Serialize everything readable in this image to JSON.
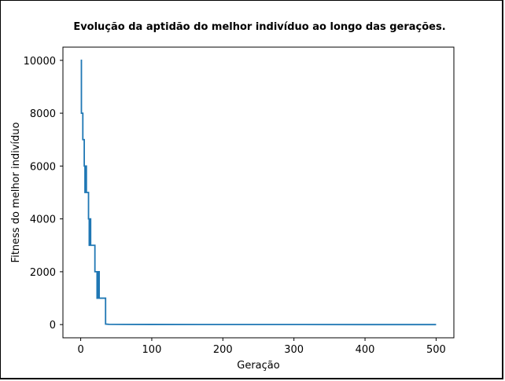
{
  "chart_data": {
    "type": "line",
    "title": "Evolução da aptidão do melhor indivíduo ao longo das gerações.",
    "xlabel": "Geração",
    "ylabel": "Fitness do melhor indivíduo",
    "xlim": [
      -25,
      525
    ],
    "ylim": [
      -500,
      10500
    ],
    "xticks": [
      0,
      100,
      200,
      300,
      400,
      500
    ],
    "yticks": [
      0,
      2000,
      4000,
      6000,
      8000,
      10000
    ],
    "grid": false,
    "line_color": "#1f77b4",
    "series": [
      {
        "x": [
          0,
          1,
          1,
          3,
          3,
          5,
          5,
          6,
          6,
          7,
          7,
          8,
          8,
          10,
          10,
          11,
          11,
          12,
          12,
          13,
          13,
          14,
          14,
          15,
          15,
          16,
          16,
          20,
          20,
          22,
          22,
          23,
          23,
          24,
          24,
          26,
          26,
          35,
          35,
          40,
          60,
          100,
          200,
          300,
          400,
          500
        ],
        "y": [
          10000,
          10000,
          8000,
          8000,
          7000,
          7000,
          6000,
          6000,
          5000,
          5000,
          6000,
          6000,
          5000,
          5000,
          5000,
          5000,
          4000,
          4000,
          3000,
          3000,
          4000,
          4000,
          3000,
          3000,
          3000,
          3000,
          3000,
          3000,
          2000,
          2000,
          2000,
          2000,
          1000,
          1000,
          2000,
          2000,
          1000,
          1000,
          20,
          10,
          5,
          3,
          2,
          1,
          0,
          0
        ]
      }
    ]
  }
}
